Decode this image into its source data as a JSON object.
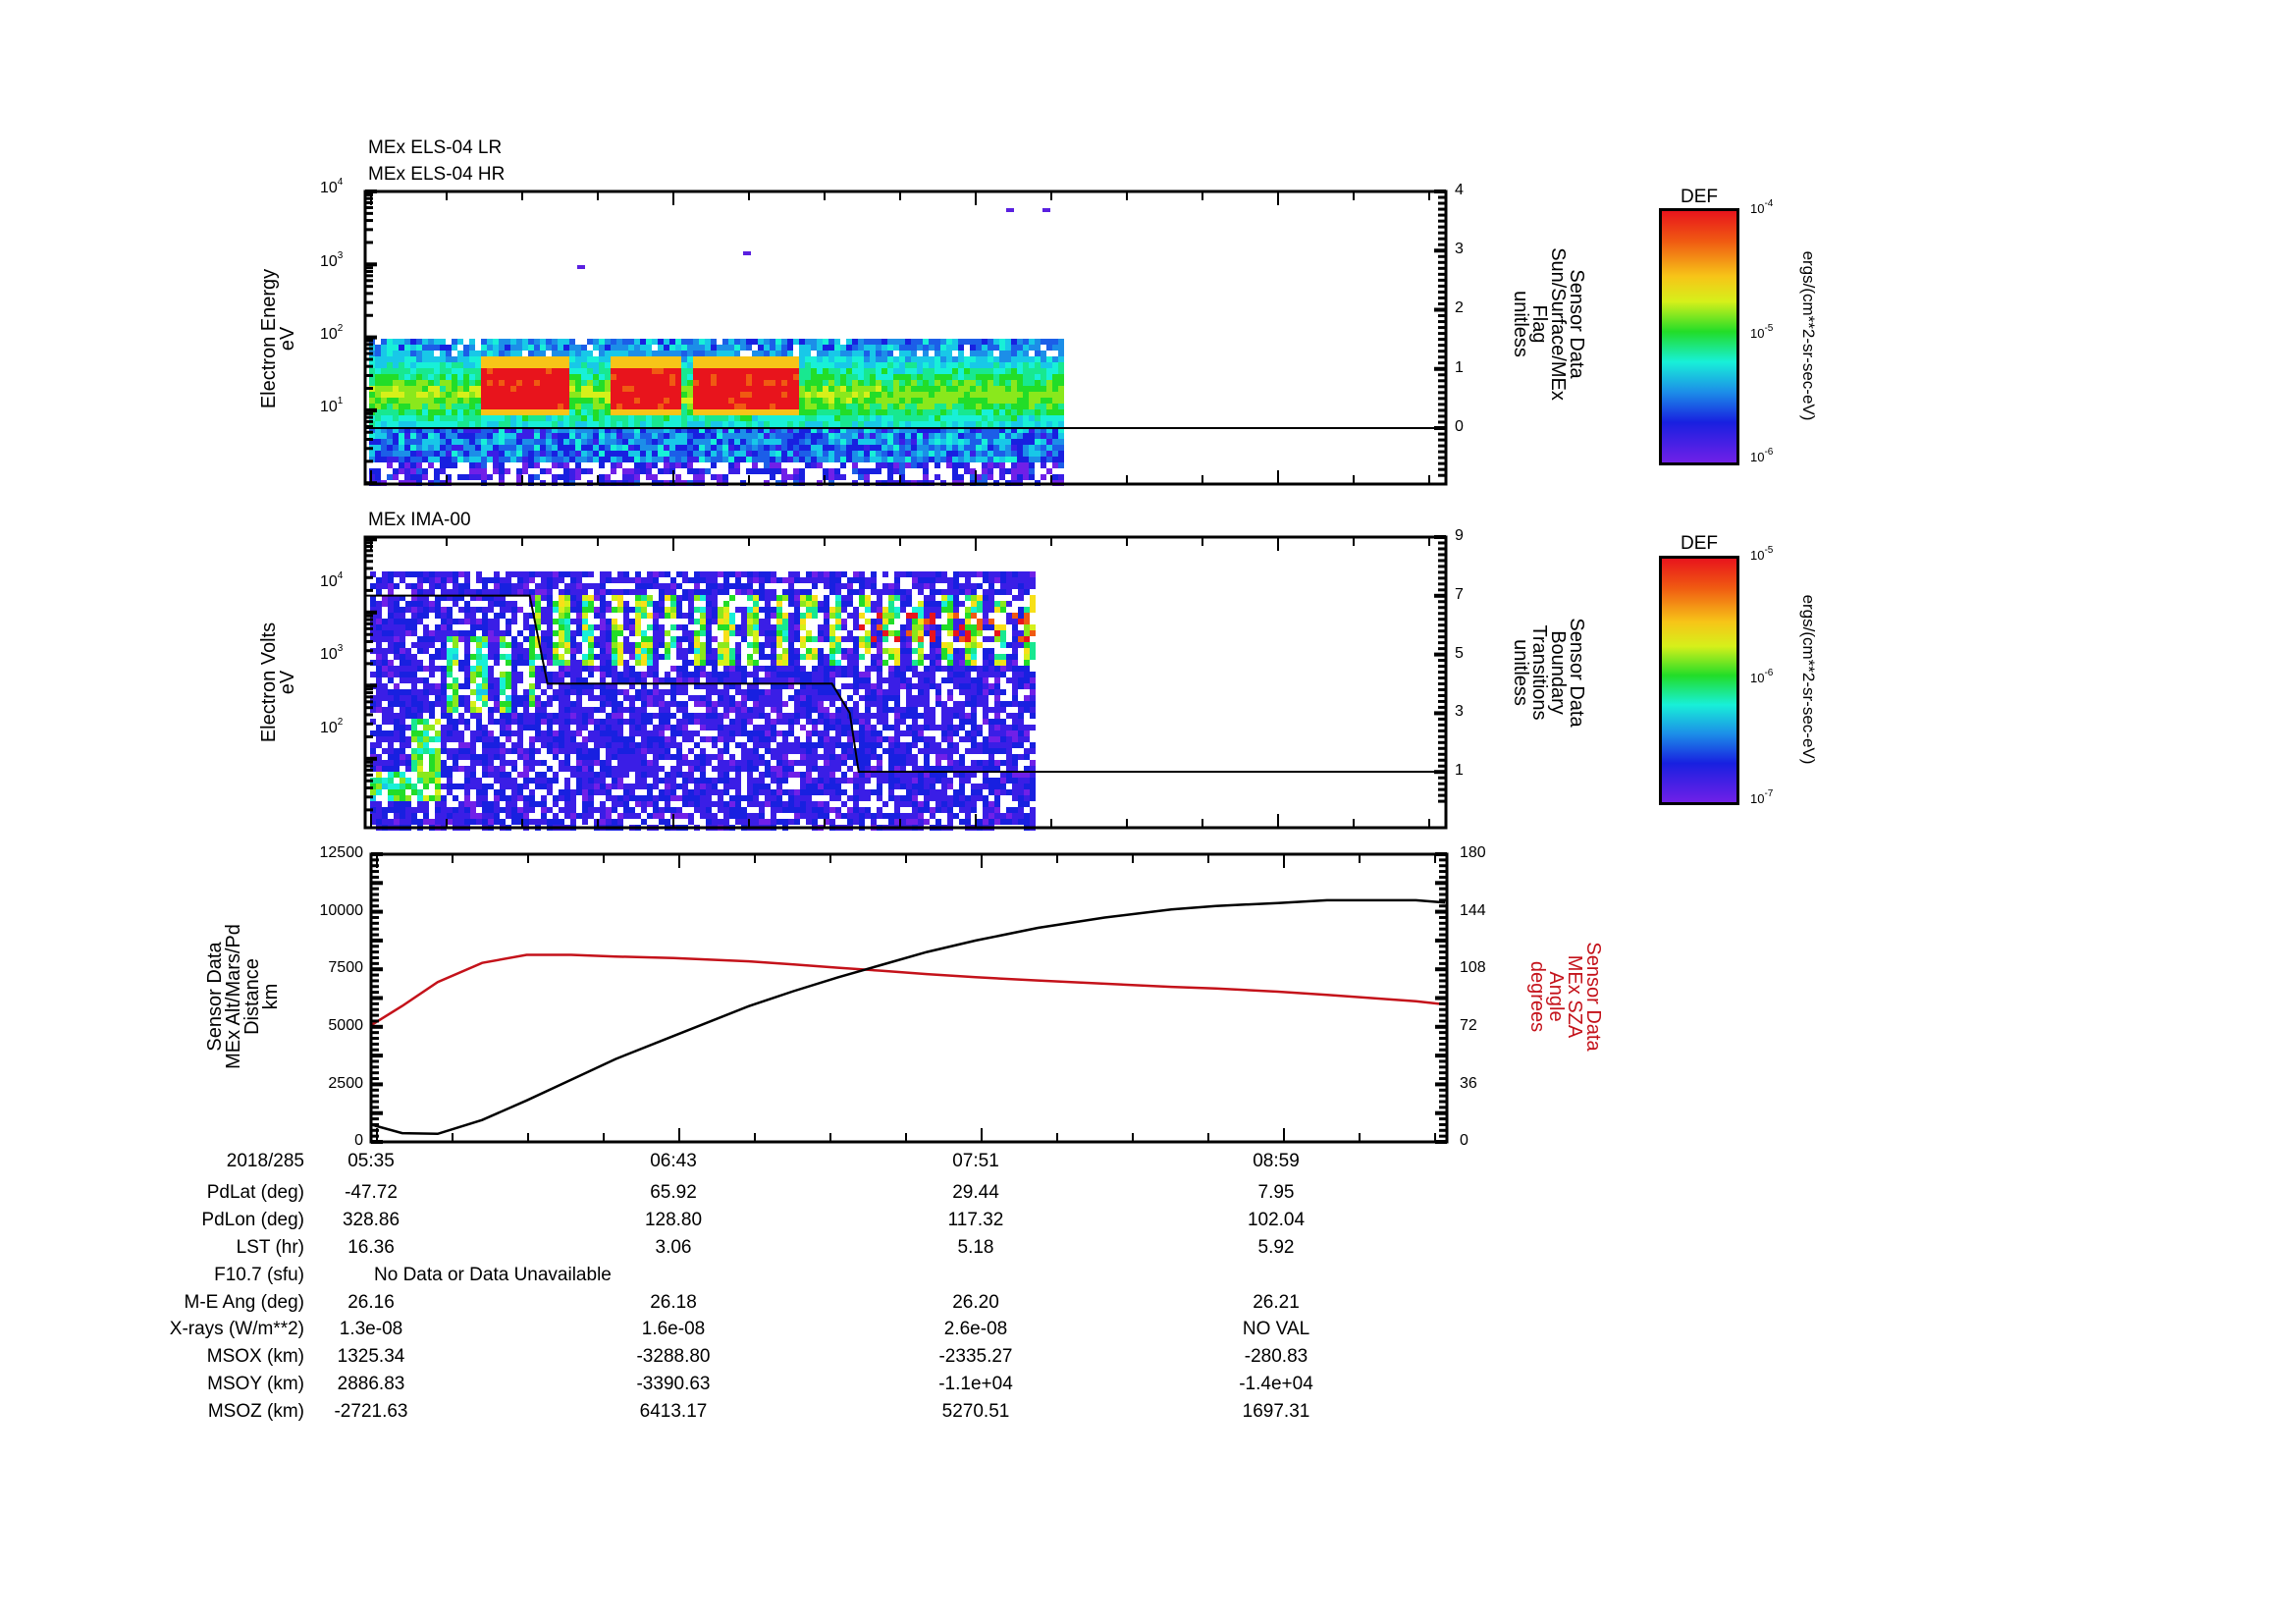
{
  "panels": [
    {
      "id": "els",
      "titles": [
        "MEx ELS-04 LR",
        "MEx ELS-04 HR"
      ],
      "left_axis": {
        "label": [
          "Electron Energy",
          "eV"
        ],
        "scale": "log",
        "ticks": [
          {
            "base": "10",
            "exp": "4"
          },
          {
            "base": "10",
            "exp": "3"
          },
          {
            "base": "10",
            "exp": "2"
          },
          {
            "base": "10",
            "exp": "1"
          }
        ]
      },
      "right_axis": {
        "label": [
          "Sensor Data",
          "Sun/Surface/MEx",
          "Flag",
          "unitless"
        ],
        "ticks": [
          "4",
          "3",
          "2",
          "1",
          "0"
        ]
      },
      "colorbar": {
        "title": "DEF",
        "top": {
          "base": "10",
          "exp": "-4"
        },
        "mid": {
          "base": "10",
          "exp": "-5"
        },
        "bottom": {
          "base": "10",
          "exp": "-6"
        },
        "units": "ergs/(cm**2-sr-sec-eV)"
      }
    },
    {
      "id": "ima",
      "titles": [
        "MEx IMA-00"
      ],
      "left_axis": {
        "label": [
          "Electron Volts",
          "eV"
        ],
        "scale": "log",
        "ticks": [
          {
            "base": "10",
            "exp": "4"
          },
          {
            "base": "10",
            "exp": "3"
          },
          {
            "base": "10",
            "exp": "2"
          }
        ]
      },
      "right_axis": {
        "label": [
          "Sensor Data",
          "Boundary",
          "Transitions",
          "unitless"
        ],
        "ticks": [
          "9",
          "7",
          "5",
          "3",
          "1"
        ]
      },
      "colorbar": {
        "title": "DEF",
        "top": {
          "base": "10",
          "exp": "-5"
        },
        "mid": {
          "base": "10",
          "exp": "-6"
        },
        "bottom": {
          "base": "10",
          "exp": "-7"
        },
        "units": "ergs/(cm**2-sr-sec-eV)"
      }
    },
    {
      "id": "orbit",
      "left_axis": {
        "label": [
          "Sensor Data",
          "MEx Alt/Mars/Pd",
          "Distance",
          "km"
        ],
        "ticks": [
          "12500",
          "10000",
          "7500",
          "5000",
          "2500",
          "0"
        ]
      },
      "right_axis": {
        "label": [
          "Sensor Data",
          "MEx SZA",
          "Angle",
          "degrees"
        ],
        "ticks": [
          "180",
          "144",
          "108",
          "72",
          "36",
          "0"
        ],
        "color": "#c4121a"
      }
    }
  ],
  "time_axis": {
    "date": "2018/285",
    "labels": [
      "05:35",
      "06:43",
      "07:51",
      "08:59"
    ]
  },
  "ephemeris": {
    "rows": [
      {
        "label": "PdLat (deg)",
        "values": [
          "-47.72",
          "65.92",
          "29.44",
          "7.95"
        ]
      },
      {
        "label": "PdLon (deg)",
        "values": [
          "328.86",
          "128.80",
          "117.32",
          "102.04"
        ]
      },
      {
        "label": "LST (hr)",
        "values": [
          "16.36",
          "3.06",
          "5.18",
          "5.92"
        ]
      },
      {
        "label": "F10.7 (sfu)",
        "note": "No Data or Data Unavailable"
      },
      {
        "label": "M-E Ang (deg)",
        "values": [
          "26.16",
          "26.18",
          "26.20",
          "26.21"
        ]
      },
      {
        "label": "X-rays (W/m**2)",
        "values": [
          "1.3e-08",
          "1.6e-08",
          "2.6e-08",
          "NO VAL"
        ]
      },
      {
        "label": "MSOX (km)",
        "values": [
          "1325.34",
          "-3288.80",
          "-2335.27",
          "-280.83"
        ]
      },
      {
        "label": "MSOY (km)",
        "values": [
          "2886.83",
          "-3390.63",
          "-1.1e+04",
          "-1.4e+04"
        ]
      },
      {
        "label": "MSOZ (km)",
        "values": [
          "-2721.63",
          "6413.17",
          "5270.51",
          "1697.31"
        ]
      }
    ]
  },
  "colors": {
    "axis": "#000000",
    "sza": "#c4121a",
    "distance": "#000000"
  },
  "chart_data": [
    {
      "type": "heatmap",
      "title": "MEx ELS-04 LR / MEx ELS-04 HR",
      "xlabel": "2018/285 UT",
      "ylabel": "Electron Energy (eV)",
      "yscale": "log",
      "ylim": [
        2,
        10000
      ],
      "x_range": [
        "05:35",
        "09:37"
      ],
      "data_end": "07:56",
      "colorbar": {
        "label": "DEF ergs/(cm**2-sr-sec-eV)",
        "range": [
          1e-06,
          0.0001
        ]
      },
      "features": [
        {
          "desc": "intense band (red) 15-50 eV",
          "from": "06:00",
          "to": "07:10"
        },
        {
          "desc": "green/yellow band 5-60 eV",
          "from": "05:35",
          "to": "07:56"
        },
        {
          "desc": "scattered counts up to ~300 eV",
          "from": "05:35",
          "to": "07:56"
        }
      ],
      "overlay": {
        "name": "Sun/Surface/MEx Flag",
        "axis": "right",
        "ylim": [
          -0.9,
          4
        ],
        "values": [
          {
            "t": "05:35",
            "v": 0
          },
          {
            "t": "09:37",
            "v": 0
          }
        ]
      }
    },
    {
      "type": "heatmap",
      "title": "MEx IMA-00",
      "xlabel": "2018/285 UT",
      "ylabel": "Electron Volts (eV)",
      "yscale": "log",
      "ylim": [
        4,
        40000
      ],
      "x_range": [
        "05:35",
        "09:37"
      ],
      "data_end": "07:51",
      "colorbar": {
        "label": "DEF ergs/(cm**2-sr-sec-eV)",
        "range": [
          1e-07,
          1e-05
        ]
      },
      "features": [
        {
          "desc": "low-energy ion enhancement 10-30 eV",
          "from": "05:35",
          "to": "05:52"
        },
        {
          "desc": "rising energy dispersion 30 eV-2 keV",
          "from": "05:47",
          "to": "06:10"
        },
        {
          "desc": "periodic stripes 0.5-5 keV",
          "from": "06:10",
          "to": "07:51"
        }
      ],
      "overlay": {
        "name": "Boundary Transitions",
        "axis": "right",
        "ylim": [
          -0.2,
          9
        ],
        "values": [
          {
            "t": "05:35",
            "v": 7
          },
          {
            "t": "06:12",
            "v": 7
          },
          {
            "t": "06:16",
            "v": 4
          },
          {
            "t": "07:20",
            "v": 4
          },
          {
            "t": "07:24",
            "v": 3
          },
          {
            "t": "07:26",
            "v": 1
          },
          {
            "t": "09:37",
            "v": 1
          }
        ]
      }
    },
    {
      "type": "line",
      "xlabel": "2018/285 UT",
      "x": [
        "05:35",
        "05:42",
        "05:50",
        "06:00",
        "06:10",
        "06:20",
        "06:30",
        "06:43",
        "07:00",
        "07:10",
        "07:20",
        "07:30",
        "07:40",
        "07:51",
        "08:05",
        "08:20",
        "08:35",
        "08:45",
        "08:59",
        "09:10",
        "09:20",
        "09:30",
        "09:37"
      ],
      "series": [
        {
          "name": "MEx Alt/Mars/Pd Distance (km)",
          "axis": "left",
          "color": "#000000",
          "values": [
            750,
            380,
            350,
            950,
            1800,
            2700,
            3600,
            4600,
            5900,
            6550,
            7150,
            7700,
            8250,
            8750,
            9300,
            9750,
            10100,
            10250,
            10380,
            10500,
            10500,
            10500,
            10400
          ]
        },
        {
          "name": "MEx SZA Angle (degrees)",
          "axis": "right",
          "color": "#c4121a",
          "values": [
            73,
            85,
            100,
            112,
            117,
            117,
            116,
            115,
            113,
            111,
            109,
            107,
            105,
            103,
            101,
            99,
            97,
            96,
            94,
            92,
            90,
            88,
            86
          ]
        }
      ],
      "ylabel": "Sensor Data MEx Alt/Mars/Pd Distance (km)",
      "ylim": [
        0,
        12500
      ],
      "y2label": "Sensor Data MEx SZA Angle (degrees)",
      "y2lim": [
        0,
        180
      ]
    }
  ]
}
